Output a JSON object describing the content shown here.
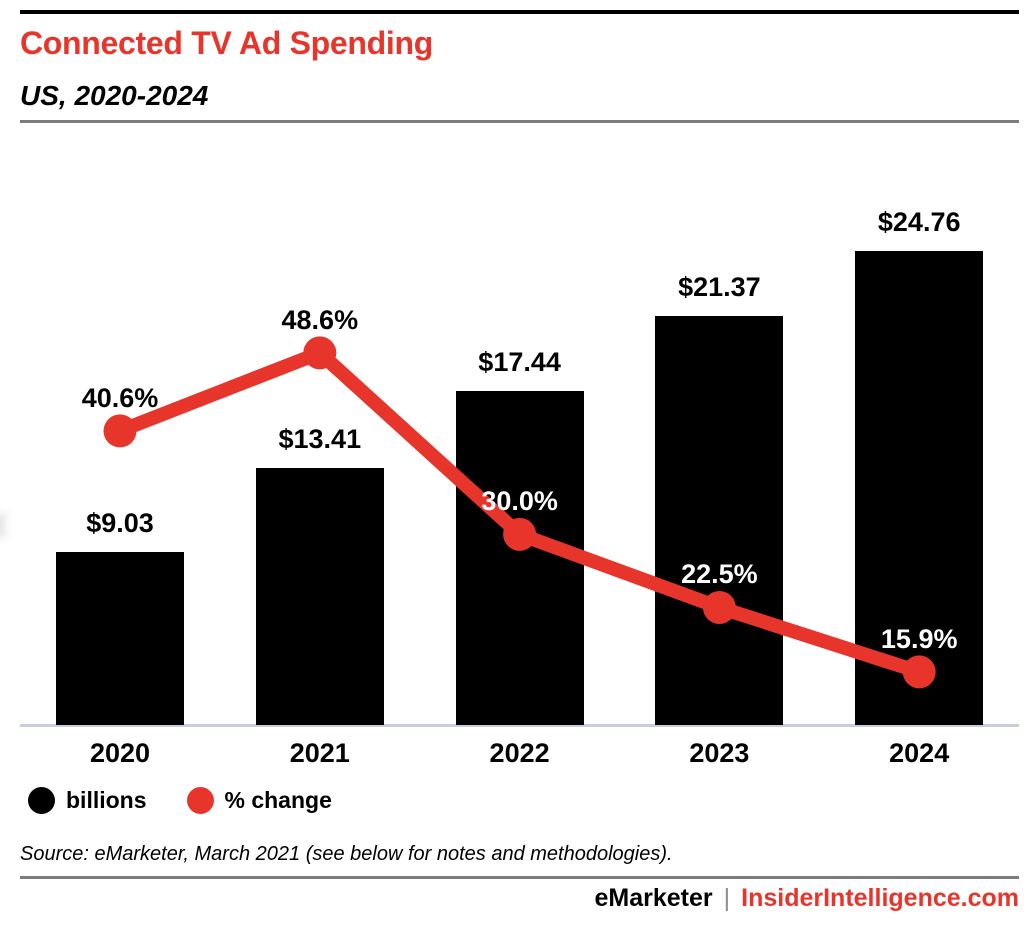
{
  "header": {
    "title": "Connected TV Ad Spending",
    "subtitle": "US, 2020-2024"
  },
  "chart_data": {
    "type": "combo",
    "categories": [
      "2020",
      "2021",
      "2022",
      "2023",
      "2024"
    ],
    "series": [
      {
        "name": "billions",
        "type": "bar",
        "color": "#000000",
        "unit": "USD billions",
        "values": [
          9.03,
          13.41,
          17.44,
          21.37,
          24.76
        ],
        "labels": [
          "$9.03",
          "$13.41",
          "$17.44",
          "$21.37",
          "$24.76"
        ]
      },
      {
        "name": "% change",
        "type": "line",
        "color": "#e8352b",
        "unit": "percent",
        "values": [
          40.6,
          48.6,
          30.0,
          22.5,
          15.9
        ],
        "labels": [
          "40.6%",
          "48.6%",
          "30.0%",
          "22.5%",
          "15.9%"
        ]
      }
    ],
    "title": "Connected TV Ad Spending",
    "subtitle": "US, 2020-2024",
    "xlabel": "",
    "ylabel": "",
    "legend_position": "bottom-left",
    "grid": false
  },
  "legend": {
    "items": [
      {
        "label": "billions",
        "color": "#000000"
      },
      {
        "label": "% change",
        "color": "#e8352b"
      }
    ]
  },
  "source": {
    "text": "Source: eMarketer, March 2021 (see below for notes and methodologies)."
  },
  "footer": {
    "brand": "eMarketer",
    "separator": "|",
    "site": "InsiderIntelligence.com"
  },
  "colors": {
    "accent_red": "#e8352b",
    "bar_black": "#000000",
    "rule_gray": "#7c7c7c",
    "axis_line": "#c7cdda",
    "pipe_gray": "#8f8f8f"
  }
}
